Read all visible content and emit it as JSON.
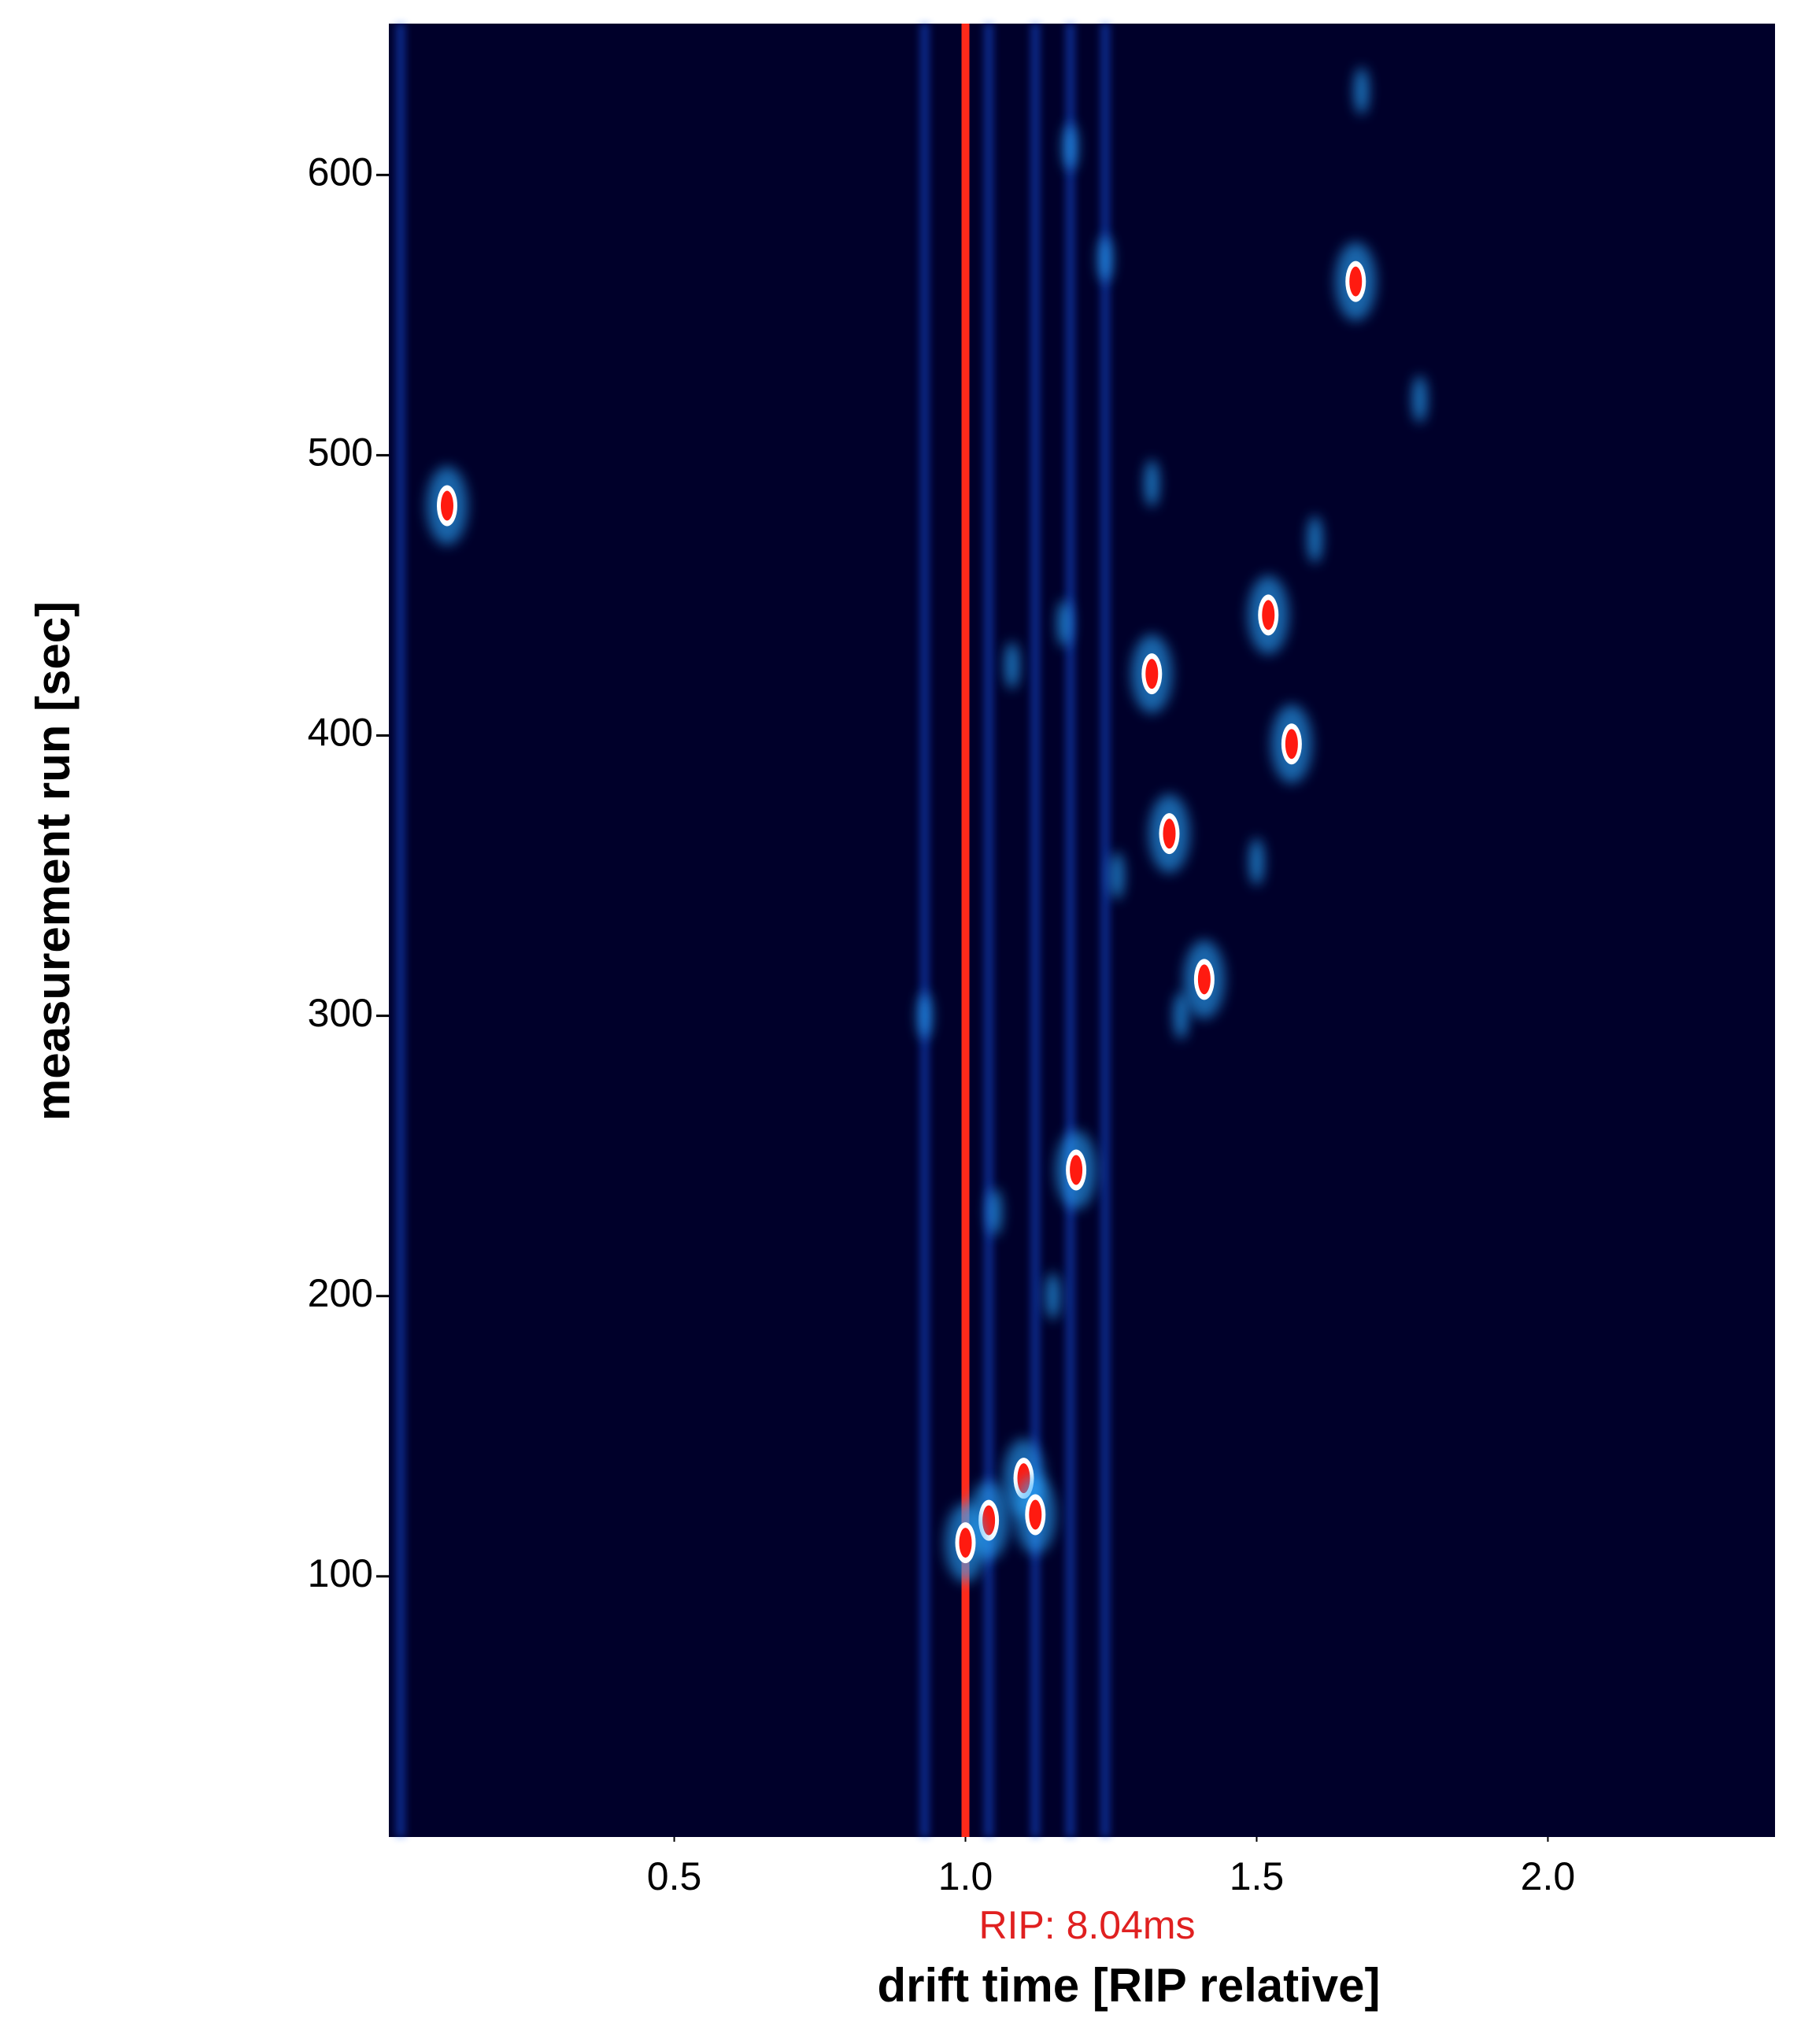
{
  "chart_data": {
    "type": "heatmap",
    "x_label": "drift time [RIP relative]",
    "y_label": "measurement run [sec]",
    "annotation": {
      "text": "RIP: 8.04ms",
      "color": "#e02020"
    },
    "background": "#00002a",
    "xlim": [
      0.01,
      2.39
    ],
    "ylim": [
      7,
      654
    ],
    "xticks": [
      0.5,
      {
        "value": 1,
        "label": "1.0"
      },
      1.5,
      {
        "value": 2,
        "label": "2.0"
      }
    ],
    "yticks": [
      100,
      200,
      300,
      400,
      500,
      600
    ],
    "rip_line": {
      "x": 1.0,
      "color": "#ff2a1a"
    },
    "streaks": {
      "x": [
        0.03,
        0.93,
        1.04,
        1.12,
        1.18,
        1.24
      ],
      "color": "#1a5cff"
    },
    "peaks": {
      "x": [
        1.67,
        1.52,
        1.32,
        1.56,
        1.35,
        1.41,
        1.19,
        1.1,
        1.12,
        1.04,
        1.0,
        0.11
      ],
      "y": [
        562,
        443,
        422,
        397,
        365,
        313,
        245,
        135,
        122,
        120,
        112,
        482
      ],
      "color": "#ff1a10"
    },
    "faint_spots": {
      "x": [
        1.18,
        1.24,
        1.17,
        1.08,
        1.26,
        1.37,
        0.93,
        1.05,
        1.15,
        1.78,
        1.68,
        1.5,
        1.32,
        1.6
      ],
      "y": [
        610,
        570,
        440,
        425,
        350,
        300,
        300,
        230,
        200,
        520,
        630,
        355,
        490,
        470
      ],
      "color": "#2aa8ff"
    }
  }
}
